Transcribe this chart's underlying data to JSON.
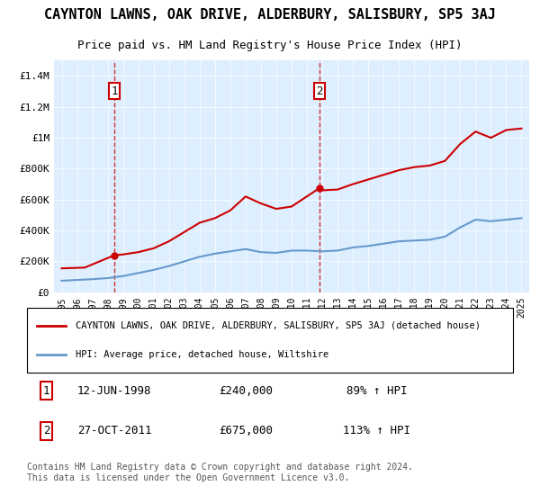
{
  "title": "CAYNTON LAWNS, OAK DRIVE, ALDERBURY, SALISBURY, SP5 3AJ",
  "subtitle": "Price paid vs. HM Land Registry's House Price Index (HPI)",
  "property_color": "#cc0000",
  "hpi_color": "#6699cc",
  "bg_color": "#ddeeff",
  "ylim": [
    0,
    1500000
  ],
  "yticks": [
    0,
    200000,
    400000,
    600000,
    800000,
    1000000,
    1200000,
    1400000
  ],
  "ytick_labels": [
    "£0",
    "£200K",
    "£400K",
    "£600K",
    "£800K",
    "£1M",
    "£1.2M",
    "£1.4M"
  ],
  "sale1": {
    "date": "12-JUN-1998",
    "price": 240000,
    "pct": "89%",
    "label": "1"
  },
  "sale2": {
    "date": "27-OCT-2011",
    "price": 675000,
    "pct": "113%",
    "label": "2"
  },
  "legend_property": "CAYNTON LAWNS, OAK DRIVE, ALDERBURY, SALISBURY, SP5 3AJ (detached house)",
  "legend_hpi": "HPI: Average price, detached house, Wiltshire",
  "footer": "Contains HM Land Registry data © Crown copyright and database right 2024.\nThis data is licensed under the Open Government Licence v3.0.",
  "hpi_data": {
    "years": [
      1995,
      1996,
      1997,
      1998,
      1999,
      2000,
      2001,
      2002,
      2003,
      2004,
      2005,
      2006,
      2007,
      2008,
      2009,
      2010,
      2011,
      2012,
      2013,
      2014,
      2015,
      2016,
      2017,
      2018,
      2019,
      2020,
      2021,
      2022,
      2023,
      2024,
      2025
    ],
    "values": [
      75000,
      80000,
      85000,
      92000,
      105000,
      125000,
      145000,
      170000,
      200000,
      230000,
      250000,
      265000,
      280000,
      260000,
      255000,
      270000,
      270000,
      265000,
      270000,
      290000,
      300000,
      315000,
      330000,
      335000,
      340000,
      360000,
      420000,
      470000,
      460000,
      470000,
      480000
    ]
  },
  "property_data": {
    "x": [
      1995.0,
      1996.5,
      1998.44,
      1999.0,
      2000.0,
      2001.0,
      2002.0,
      2003.0,
      2004.0,
      2005.0,
      2006.0,
      2007.0,
      2008.0,
      2009.0,
      2010.0,
      2011.83,
      2012.0,
      2013.0,
      2014.0,
      2015.0,
      2016.0,
      2017.0,
      2018.0,
      2019.0,
      2020.0,
      2021.0,
      2022.0,
      2023.0,
      2024.0,
      2025.0
    ],
    "values": [
      155000,
      160000,
      240000,
      245000,
      260000,
      285000,
      330000,
      390000,
      450000,
      480000,
      530000,
      620000,
      575000,
      540000,
      555000,
      675000,
      660000,
      665000,
      700000,
      730000,
      760000,
      790000,
      810000,
      820000,
      850000,
      960000,
      1040000,
      1000000,
      1050000,
      1060000
    ]
  }
}
